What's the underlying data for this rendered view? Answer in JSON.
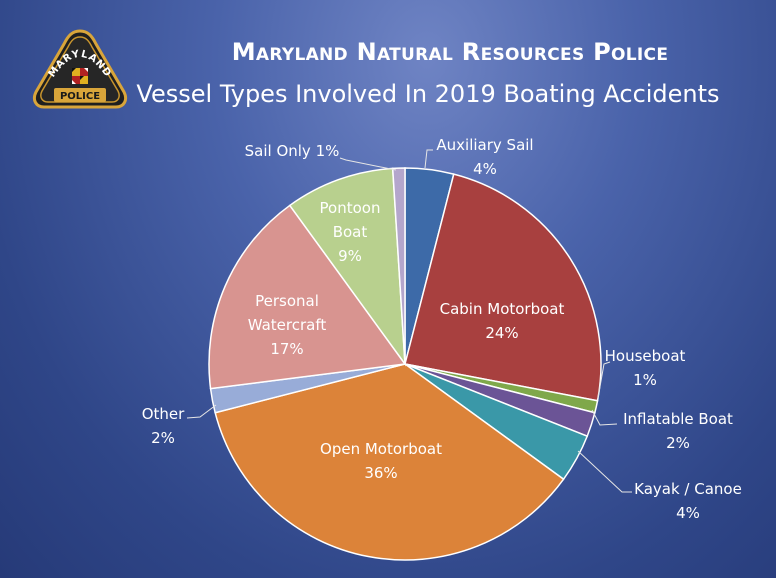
{
  "badge": {
    "top_text": "MARYLAND",
    "bottom_text": "POLICE"
  },
  "header": {
    "title": "Maryland Natural Resources Police",
    "subtitle": "Vessel Types Involved In 2019 Boating Accidents"
  },
  "chart_data": {
    "type": "pie",
    "start_angle_deg": 0,
    "direction": "clockwise",
    "slices": [
      {
        "name": "Auxiliary Sail",
        "value": 4,
        "label": "4%",
        "color": "#3d6aa8"
      },
      {
        "name": "Cabin Motorboat",
        "value": 24,
        "label": "24%",
        "color": "#a8403f"
      },
      {
        "name": "Houseboat",
        "value": 1,
        "label": "1%",
        "color": "#7fa84a"
      },
      {
        "name": "Inflatable Boat",
        "value": 2,
        "label": "2%",
        "color": "#6b5496"
      },
      {
        "name": "Kayak / Canoe",
        "value": 4,
        "label": "4%",
        "color": "#3a98a8"
      },
      {
        "name": "Open Motorboat",
        "value": 36,
        "label": "36%",
        "color": "#dc8339"
      },
      {
        "name": "Other",
        "value": 2,
        "label": "2%",
        "color": "#98acd8"
      },
      {
        "name": "Personal Watercraft",
        "value": 17,
        "label": "17%",
        "color": "#d89490"
      },
      {
        "name": "Pontoon Boat",
        "value": 9,
        "label": "9%",
        "color": "#b8d08e"
      },
      {
        "name": "Sail Only",
        "value": 1,
        "label": "1%",
        "color": "#b4a6cc"
      }
    ]
  }
}
